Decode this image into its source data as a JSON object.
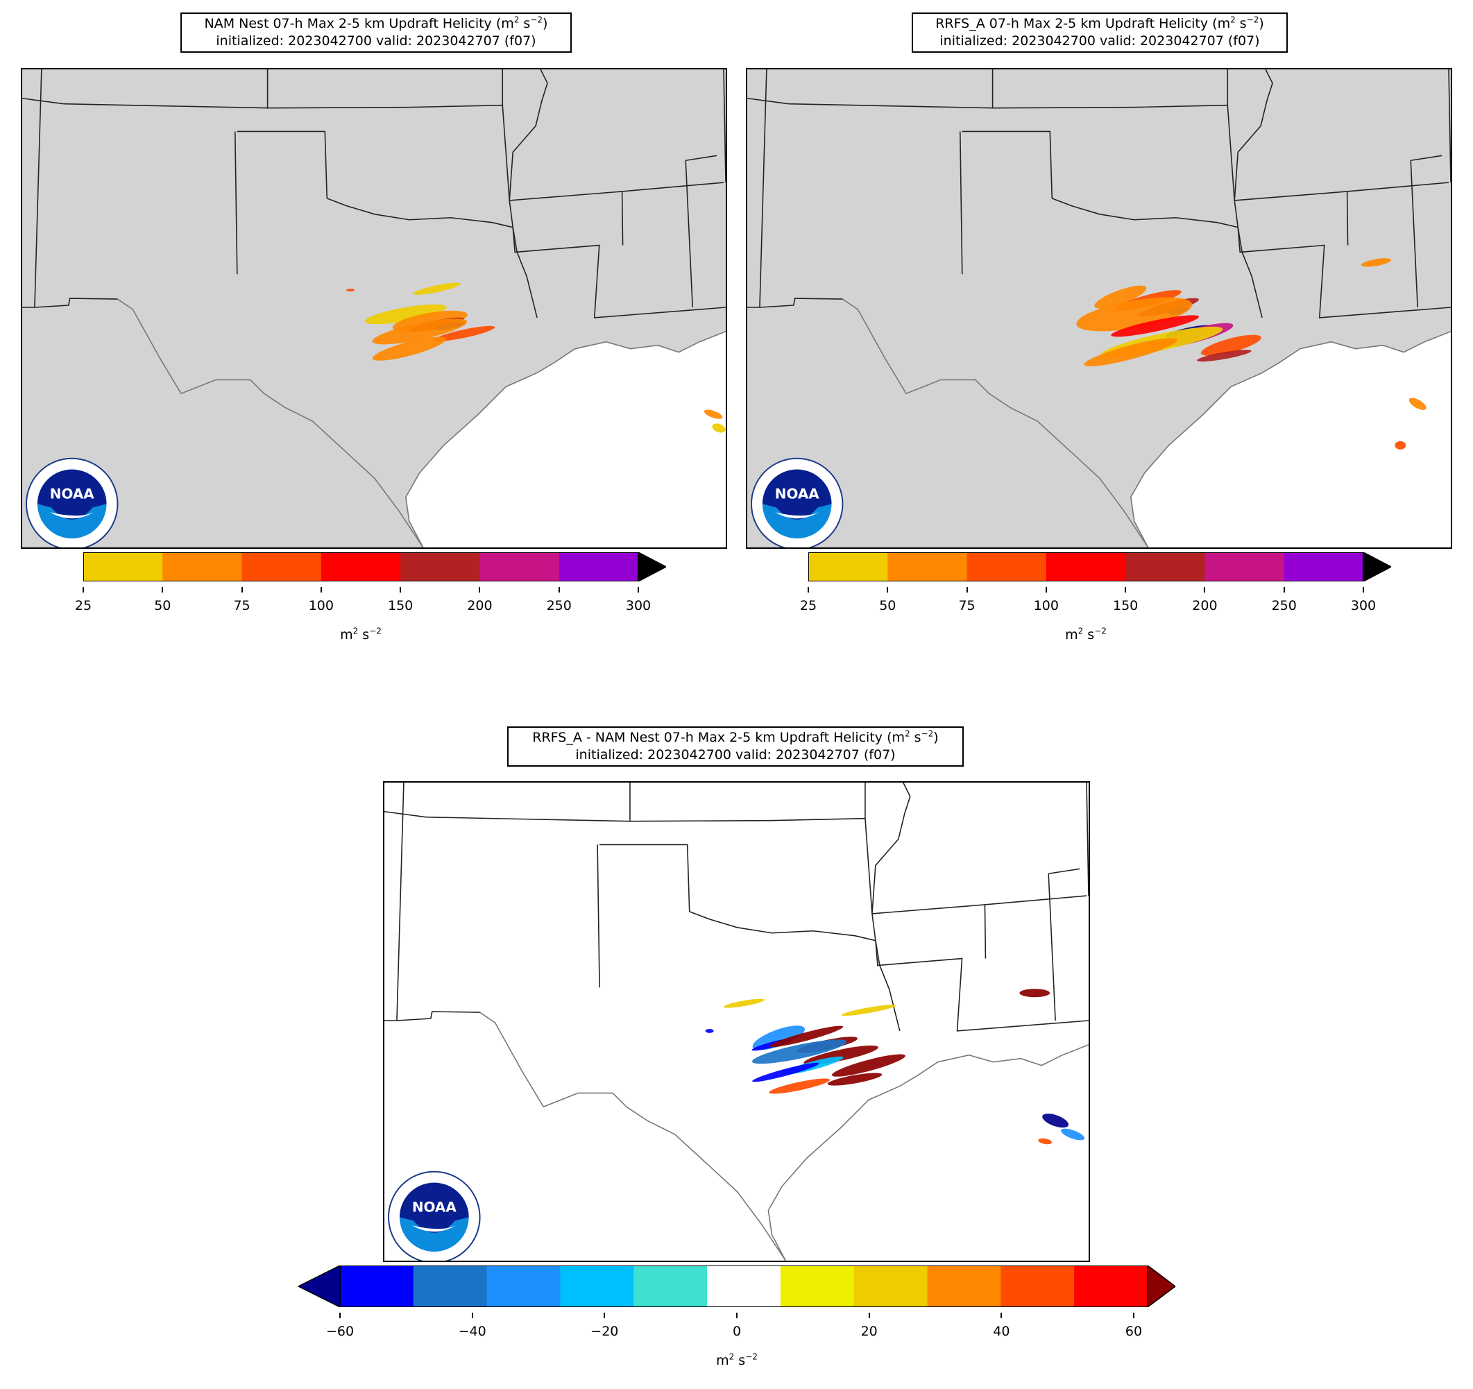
{
  "panels": [
    {
      "id": "nam",
      "title_line1_pre": "NAM Nest 07-h Max 2-5 km Updraft Helicity (m",
      "title_sup1": "2",
      "title_mid": " s",
      "title_sup2": "−2",
      "title_close": ")",
      "title_line2": "initialized: 2023042700 valid: 2023042707 (f07)",
      "land_color": "#d3d3d3",
      "logo_text": "NOAA"
    },
    {
      "id": "rrfs",
      "title_line1_pre": "RRFS_A 07-h Max 2-5 km Updraft Helicity (m",
      "title_sup1": "2",
      "title_mid": " s",
      "title_sup2": "−2",
      "title_close": ")",
      "title_line2": "initialized: 2023042700 valid: 2023042707 (f07)",
      "land_color": "#d3d3d3",
      "logo_text": "NOAA"
    },
    {
      "id": "diff",
      "title_line1_pre": "RRFS_A - NAM Nest 07-h Max 2-5 km Updraft Helicity (m",
      "title_sup1": "2",
      "title_mid": " s",
      "title_sup2": "−2",
      "title_close": ")",
      "title_line2": "initialized: 2023042700 valid: 2023042707 (f07)",
      "land_color": "#ffffff",
      "logo_text": "NOAA"
    }
  ],
  "colorbars": {
    "uh": {
      "bounds": [
        25,
        50,
        75,
        100,
        150,
        200,
        250,
        300
      ],
      "tick_labels": [
        "25",
        "50",
        "75",
        "100",
        "150",
        "200",
        "250",
        "300"
      ],
      "colors": [
        "#eecc00",
        "#ff8800",
        "#ff4d00",
        "#ff0000",
        "#b22222",
        "#c71585",
        "#9400d3"
      ],
      "extend_max_color": "#000000",
      "unit_base": "m",
      "unit_sup1": "2",
      "unit_mid": " s",
      "unit_sup2": "−2"
    },
    "diff": {
      "bounds": [
        -60,
        -50,
        -40,
        -30,
        -20,
        -10,
        10,
        20,
        30,
        40,
        50,
        60
      ],
      "tick_values": [
        -60,
        -40,
        -20,
        0,
        20,
        40,
        60
      ],
      "tick_labels": [
        "−60",
        "−40",
        "−20",
        "0",
        "20",
        "40",
        "60"
      ],
      "colors": [
        "#0000ff",
        "#1c74c8",
        "#1e90ff",
        "#00bfff",
        "#40e0d0",
        "#ffffff",
        "#eeee00",
        "#eecc00",
        "#ff8800",
        "#ff4d00",
        "#ff0000"
      ],
      "extend_min_color": "#00008b",
      "extend_max_color": "#8b0000",
      "unit_base": "m",
      "unit_sup1": "2",
      "unit_mid": " s",
      "unit_sup2": "−2"
    }
  }
}
